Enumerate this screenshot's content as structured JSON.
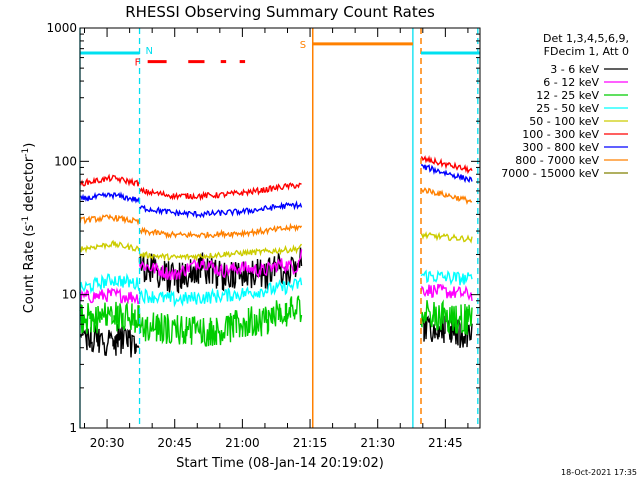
{
  "chart_data": {
    "type": "line",
    "title": "RHESSI Observing Summary Count Rates",
    "xlabel": "Start Time (08-Jan-14 20:19:02)",
    "ylabel_main": "Count Rate (s",
    "ylabel_exp1": "-1",
    "ylabel_mid": " detector",
    "ylabel_exp2": "-1",
    "ylabel_end": ")",
    "y_scale": "log",
    "ylim": [
      1,
      1000
    ],
    "y_ticks": [
      {
        "value": 1,
        "label": "1"
      },
      {
        "value": 10,
        "label": "10"
      },
      {
        "value": 100,
        "label": "100"
      },
      {
        "value": 1000,
        "label": "1000"
      }
    ],
    "xlim_minutes": [
      20.4,
      21.878
    ],
    "x_ticks": [
      {
        "value": 20.5,
        "label": "20:30"
      },
      {
        "value": 20.75,
        "label": "20:45"
      },
      {
        "value": 21.0,
        "label": "21:00"
      },
      {
        "value": 21.25,
        "label": "21:15"
      },
      {
        "value": 21.5,
        "label": "21:30"
      },
      {
        "value": 21.75,
        "label": "21:45"
      }
    ],
    "legend": {
      "header": [
        "Det 1,3,4,5,6,9,",
        "FDecim 1, Att 0"
      ],
      "position": "top-right"
    },
    "series": [
      {
        "name": "3 - 6 keV",
        "color": "#000000",
        "segments": [
          {
            "x": [
              20.4,
              20.52,
              20.62
            ],
            "y": [
              4.5,
              4.6,
              4.4
            ]
          },
          {
            "x": [
              20.62,
              20.75,
              20.85,
              20.92,
              21.0,
              21.08,
              21.14,
              21.2,
              21.22
            ],
            "y": [
              17,
              13,
              16,
              14,
              15,
              14,
              16,
              15,
              20
            ]
          },
          {
            "x": [
              21.66,
              21.75,
              21.85
            ],
            "y": [
              5.5,
              5.2,
              5.0
            ]
          }
        ]
      },
      {
        "name": "6 - 12 keV",
        "color": "#ff00ff",
        "segments": [
          {
            "x": [
              20.4,
              20.52,
              20.62
            ],
            "y": [
              9.5,
              10,
              9.5
            ]
          },
          {
            "x": [
              20.62,
              20.75,
              20.85,
              20.92,
              21.0,
              21.08,
              21.14,
              21.2,
              21.22
            ],
            "y": [
              17,
              14,
              18,
              15,
              16,
              15,
              17,
              16,
              21
            ]
          },
          {
            "x": [
              21.66,
              21.75,
              21.85
            ],
            "y": [
              11,
              10.5,
              10
            ]
          }
        ]
      },
      {
        "name": "12 - 25 keV",
        "color": "#00cc00",
        "segments": [
          {
            "x": [
              20.4,
              20.52,
              20.62
            ],
            "y": [
              6.5,
              7,
              6.5
            ]
          },
          {
            "x": [
              20.62,
              20.75,
              20.85,
              20.92,
              21.0,
              21.08,
              21.14,
              21.2,
              21.22
            ],
            "y": [
              5.8,
              5.5,
              5.3,
              5.5,
              6.0,
              6.5,
              7.0,
              7.5,
              8.5
            ]
          },
          {
            "x": [
              21.66,
              21.75,
              21.85
            ],
            "y": [
              7,
              6.7,
              6.5
            ]
          }
        ]
      },
      {
        "name": "25 - 50 keV",
        "color": "#00ffff",
        "segments": [
          {
            "x": [
              20.4,
              20.52,
              20.62
            ],
            "y": [
              11,
              13,
              12
            ]
          },
          {
            "x": [
              20.62,
              20.75,
              20.85,
              20.92,
              21.0,
              21.08,
              21.14,
              21.2,
              21.22
            ],
            "y": [
              10,
              9.2,
              9.5,
              9.8,
              10.2,
              10.8,
              11.2,
              11.8,
              12.5
            ]
          },
          {
            "x": [
              21.66,
              21.75,
              21.85
            ],
            "y": [
              14,
              13.5,
              13
            ]
          }
        ]
      },
      {
        "name": "50 - 100 keV",
        "color": "#cccc00",
        "segments": [
          {
            "x": [
              20.4,
              20.52,
              20.62
            ],
            "y": [
              22,
              24,
              22
            ]
          },
          {
            "x": [
              20.62,
              20.75,
              20.85,
              20.92,
              21.0,
              21.08,
              21.14,
              21.2,
              21.22
            ],
            "y": [
              20,
              19,
              19.5,
              20,
              20.5,
              21,
              21.5,
              22,
              23
            ]
          },
          {
            "x": [
              21.66,
              21.75,
              21.85
            ],
            "y": [
              28,
              27,
              26
            ]
          }
        ]
      },
      {
        "name": "100 - 300 keV",
        "color": "#ff0000",
        "segments": [
          {
            "x": [
              20.4,
              20.52,
              20.62
            ],
            "y": [
              68,
              75,
              68
            ]
          },
          {
            "x": [
              20.62,
              20.75,
              20.85,
              20.92,
              21.0,
              21.08,
              21.14,
              21.2,
              21.22
            ],
            "y": [
              60,
              55,
              55,
              56,
              58,
              61,
              64,
              66,
              66
            ]
          },
          {
            "x": [
              21.66,
              21.75,
              21.85
            ],
            "y": [
              105,
              95,
              85
            ]
          }
        ]
      },
      {
        "name": "300 - 800 keV",
        "color": "#0000ff",
        "segments": [
          {
            "x": [
              20.4,
              20.52,
              20.62
            ],
            "y": [
              52,
              56,
              51
            ]
          },
          {
            "x": [
              20.62,
              20.75,
              20.85,
              20.92,
              21.0,
              21.08,
              21.14,
              21.2,
              21.22
            ],
            "y": [
              45,
              41,
              40,
              41,
              42,
              44,
              46,
              47,
              46
            ]
          },
          {
            "x": [
              21.66,
              21.75,
              21.85
            ],
            "y": [
              92,
              82,
              72
            ]
          }
        ]
      },
      {
        "name": "800 - 7000 keV",
        "color": "#ff8000",
        "segments": [
          {
            "x": [
              20.4,
              20.52,
              20.62
            ],
            "y": [
              36,
              38,
              35
            ]
          },
          {
            "x": [
              20.62,
              20.75,
              20.85,
              20.92,
              21.0,
              21.08,
              21.14,
              21.2,
              21.22
            ],
            "y": [
              30,
              28,
              28,
              28.5,
              29,
              30,
              31,
              32,
              32
            ]
          },
          {
            "x": [
              21.66,
              21.75,
              21.85
            ],
            "y": [
              62,
              56,
              50
            ]
          }
        ]
      },
      {
        "name": "7000 - 15000 keV",
        "color": "#808000",
        "segments": []
      }
    ],
    "annotations": {
      "night_label": "N",
      "flare_label": "F",
      "saa_label": "S",
      "night_bars": [
        [
          20.4,
          20.62
        ],
        [
          21.66,
          21.878
        ]
      ],
      "night_level": 650,
      "flare_bars": [
        [
          20.65,
          20.72
        ],
        [
          20.8,
          20.86
        ],
        [
          20.92,
          20.94
        ],
        [
          20.99,
          21.01
        ]
      ],
      "flare_level": 560,
      "saa_bars": [
        [
          21.26,
          21.63
        ]
      ],
      "saa_level": 760,
      "night_start_lines": [
        20.4,
        21.63
      ],
      "night_end_lines": [
        20.62,
        21.87
      ],
      "saa_start_lines": [
        21.26
      ],
      "saa_end_lines": [
        21.66
      ]
    },
    "footer_date": "18-Oct-2021 17:35"
  }
}
